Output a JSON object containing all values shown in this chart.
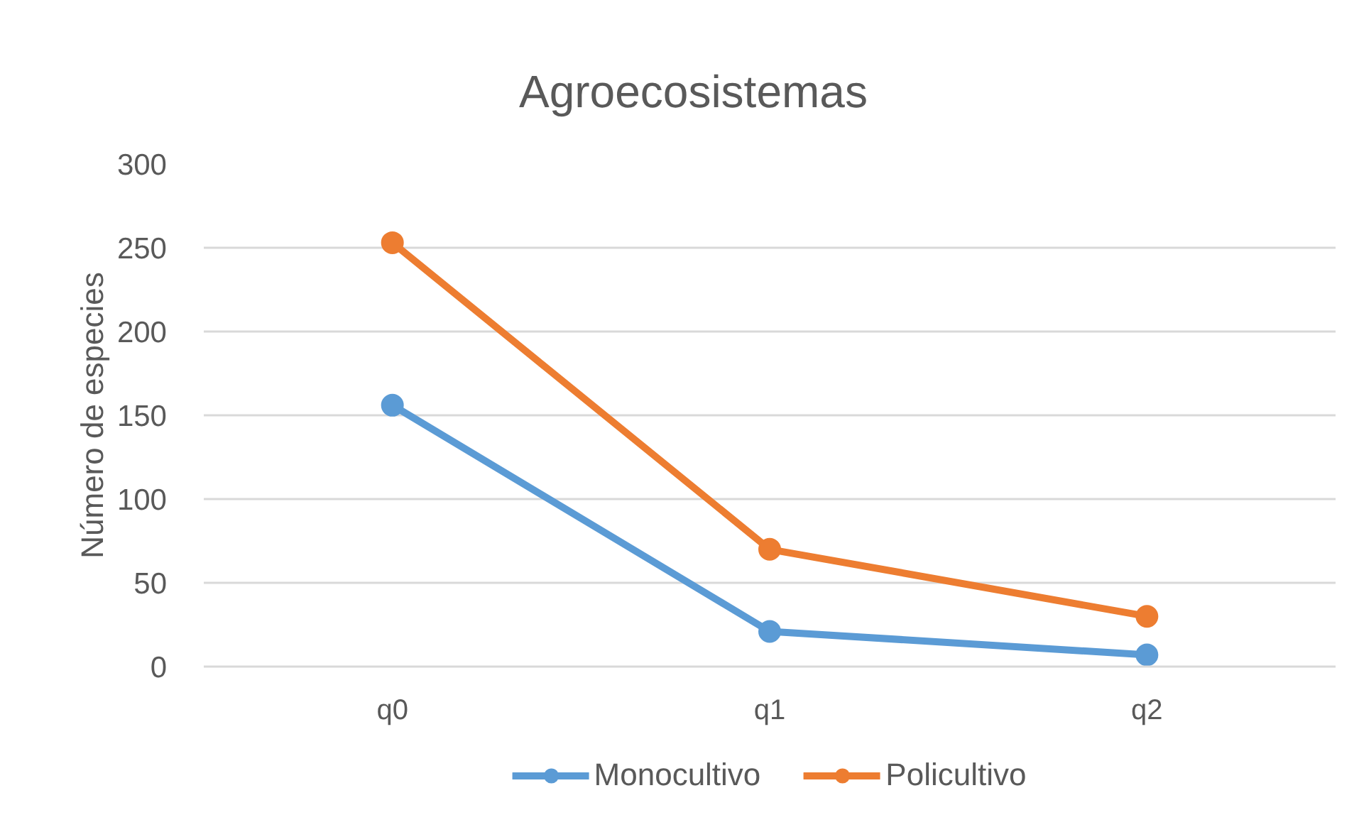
{
  "chart_data": {
    "type": "line",
    "title": "Agroecosistemas",
    "ylabel": "Número de especies",
    "categories": [
      "q0",
      "q1",
      "q2"
    ],
    "series": [
      {
        "name": "Monocultivo",
        "color": "#5b9bd5",
        "values": [
          156,
          21,
          7
        ]
      },
      {
        "name": "Policultivo",
        "color": "#ed7d31",
        "values": [
          253,
          70,
          30
        ]
      }
    ],
    "ylim": [
      0,
      300
    ],
    "yticks": [
      0,
      50,
      100,
      150,
      200,
      250,
      300
    ],
    "grid": "y",
    "legend": "bottom",
    "marker": "circle",
    "line_style": "solid"
  }
}
